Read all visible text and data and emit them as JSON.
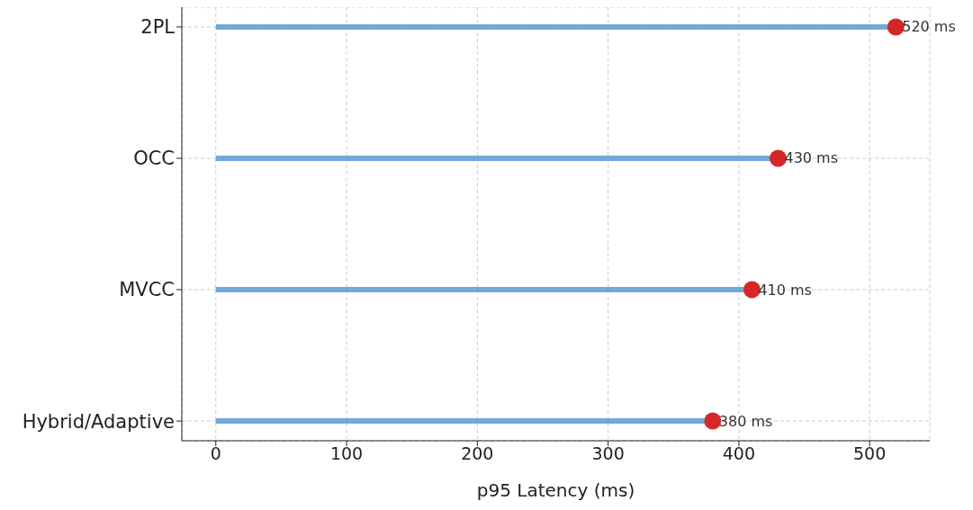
{
  "chart_data": {
    "type": "lollipop",
    "orientation": "horizontal",
    "xlabel": "p95 Latency (ms)",
    "categories": [
      "2PL",
      "OCC",
      "MVCC",
      "Hybrid/Adaptive"
    ],
    "values": [
      520,
      430,
      410,
      380
    ],
    "value_labels": [
      "520 ms",
      "430 ms",
      "410 ms",
      "380 ms"
    ],
    "color": "#d62728",
    "xlim": [
      -26,
      546
    ],
    "xticks": [
      0,
      100,
      200,
      300,
      400,
      500
    ],
    "grid": true,
    "marker": "circle"
  }
}
